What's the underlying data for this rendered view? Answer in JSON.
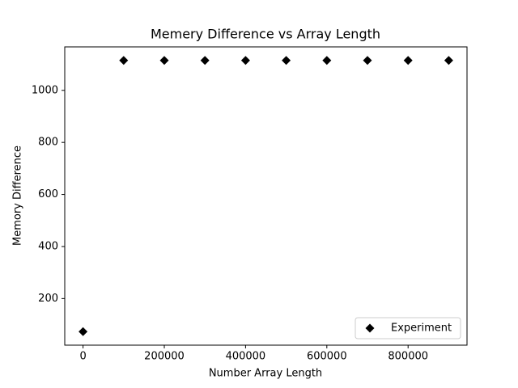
{
  "chart_data": {
    "type": "scatter",
    "title": "Memery Difference vs Array Length",
    "x_label": "Number Array Length",
    "y_label": "Memory Difference",
    "series": [
      {
        "name": "Experiment",
        "color": "#000000",
        "marker": "diamond",
        "x": [
          0,
          100000,
          200000,
          300000,
          400000,
          500000,
          600000,
          700000,
          800000,
          900000
        ],
        "values": [
          73,
          1115,
          1115,
          1115,
          1115,
          1115,
          1115,
          1115,
          1115,
          1115
        ]
      }
    ],
    "xlim": [
      -45000,
      945000
    ],
    "xticks": [
      0,
      200000,
      400000,
      600000,
      800000
    ],
    "ylim": [
      21,
      1167
    ],
    "yticks": [
      200,
      400,
      600,
      800,
      1000
    ],
    "grid": false,
    "legend": "lower right"
  }
}
